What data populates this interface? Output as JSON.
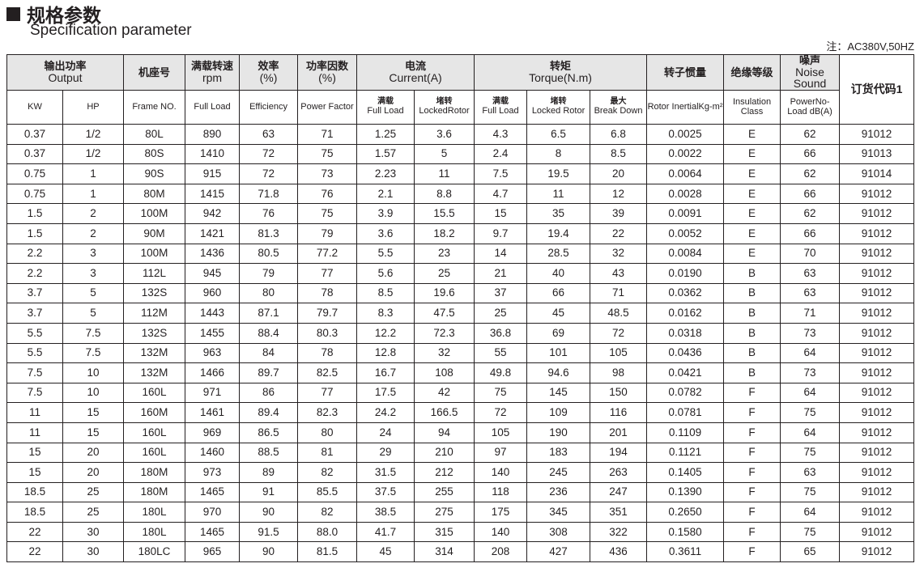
{
  "title": "规格参数",
  "subtitle": "Specification parameter",
  "note": "注：AC380V,50HZ",
  "header1": [
    {
      "cn": "输出功率",
      "en": "Output",
      "span": 2
    },
    {
      "cn": "机座号",
      "en": "",
      "span": 1
    },
    {
      "cn": "满载转速",
      "en": "rpm",
      "span": 1
    },
    {
      "cn": "效率",
      "en": "(%)",
      "span": 1
    },
    {
      "cn": "功率因数",
      "en": "(%)",
      "span": 1
    },
    {
      "cn": "电流",
      "en": "Current(A)",
      "span": 2
    },
    {
      "cn": "转矩",
      "en": "Torque(N.m)",
      "span": 3
    },
    {
      "cn": "转子惯量",
      "en": "",
      "span": 1
    },
    {
      "cn": "绝缘等级",
      "en": "",
      "span": 1
    },
    {
      "cn": "噪声",
      "en": "Noise Sound",
      "span": 1
    }
  ],
  "order_code_header": "订货代码1",
  "header2": [
    {
      "cn": "",
      "en": "KW"
    },
    {
      "cn": "",
      "en": "HP"
    },
    {
      "cn": "",
      "en": "Frame NO."
    },
    {
      "cn": "",
      "en": "Full Load"
    },
    {
      "cn": "",
      "en": "Efficiency"
    },
    {
      "cn": "",
      "en": "Power Factor"
    },
    {
      "cn": "满载",
      "en": "Full Load"
    },
    {
      "cn": "堵转",
      "en": "LockedRotor"
    },
    {
      "cn": "满载",
      "en": "Full Load"
    },
    {
      "cn": "堵转",
      "en": "Locked Rotor"
    },
    {
      "cn": "最大",
      "en": "Break Down"
    },
    {
      "cn": "",
      "en": "Rotor InertialKg-m²"
    },
    {
      "cn": "",
      "en": "Insulation Class"
    },
    {
      "cn": "",
      "en": "PowerNo-Load dB(A)"
    }
  ],
  "rows": [
    [
      "0.37",
      "1/2",
      "80L",
      "890",
      "63",
      "71",
      "1.25",
      "3.6",
      "4.3",
      "6.5",
      "6.8",
      "0.0025",
      "E",
      "62",
      "91012"
    ],
    [
      "0.37",
      "1/2",
      "80S",
      "1410",
      "72",
      "75",
      "1.57",
      "5",
      "2.4",
      "8",
      "8.5",
      "0.0022",
      "E",
      "66",
      "91013"
    ],
    [
      "0.75",
      "1",
      "90S",
      "915",
      "72",
      "73",
      "2.23",
      "11",
      "7.5",
      "19.5",
      "20",
      "0.0064",
      "E",
      "62",
      "91014"
    ],
    [
      "0.75",
      "1",
      "80M",
      "1415",
      "71.8",
      "76",
      "2.1",
      "8.8",
      "4.7",
      "11",
      "12",
      "0.0028",
      "E",
      "66",
      "91012"
    ],
    [
      "1.5",
      "2",
      "100M",
      "942",
      "76",
      "75",
      "3.9",
      "15.5",
      "15",
      "35",
      "39",
      "0.0091",
      "E",
      "62",
      "91012"
    ],
    [
      "1.5",
      "2",
      "90M",
      "1421",
      "81.3",
      "79",
      "3.6",
      "18.2",
      "9.7",
      "19.4",
      "22",
      "0.0052",
      "E",
      "66",
      "91012"
    ],
    [
      "2.2",
      "3",
      "100M",
      "1436",
      "80.5",
      "77.2",
      "5.5",
      "23",
      "14",
      "28.5",
      "32",
      "0.0084",
      "E",
      "70",
      "91012"
    ],
    [
      "2.2",
      "3",
      "112L",
      "945",
      "79",
      "77",
      "5.6",
      "25",
      "21",
      "40",
      "43",
      "0.0190",
      "B",
      "63",
      "91012"
    ],
    [
      "3.7",
      "5",
      "132S",
      "960",
      "80",
      "78",
      "8.5",
      "19.6",
      "37",
      "66",
      "71",
      "0.0362",
      "B",
      "63",
      "91012"
    ],
    [
      "3.7",
      "5",
      "112M",
      "1443",
      "87.1",
      "79.7",
      "8.3",
      "47.5",
      "25",
      "45",
      "48.5",
      "0.0162",
      "B",
      "71",
      "91012"
    ],
    [
      "5.5",
      "7.5",
      "132S",
      "1455",
      "88.4",
      "80.3",
      "12.2",
      "72.3",
      "36.8",
      "69",
      "72",
      "0.0318",
      "B",
      "73",
      "91012"
    ],
    [
      "5.5",
      "7.5",
      "132M",
      "963",
      "84",
      "78",
      "12.8",
      "32",
      "55",
      "101",
      "105",
      "0.0436",
      "B",
      "64",
      "91012"
    ],
    [
      "7.5",
      "10",
      "132M",
      "1466",
      "89.7",
      "82.5",
      "16.7",
      "108",
      "49.8",
      "94.6",
      "98",
      "0.0421",
      "B",
      "73",
      "91012"
    ],
    [
      "7.5",
      "10",
      "160L",
      "971",
      "86",
      "77",
      "17.5",
      "42",
      "75",
      "145",
      "150",
      "0.0782",
      "F",
      "64",
      "91012"
    ],
    [
      "11",
      "15",
      "160M",
      "1461",
      "89.4",
      "82.3",
      "24.2",
      "166.5",
      "72",
      "109",
      "116",
      "0.0781",
      "F",
      "75",
      "91012"
    ],
    [
      "11",
      "15",
      "160L",
      "969",
      "86.5",
      "80",
      "24",
      "94",
      "105",
      "190",
      "201",
      "0.1109",
      "F",
      "64",
      "91012"
    ],
    [
      "15",
      "20",
      "160L",
      "1460",
      "88.5",
      "81",
      "29",
      "210",
      "97",
      "183",
      "194",
      "0.1121",
      "F",
      "75",
      "91012"
    ],
    [
      "15",
      "20",
      "180M",
      "973",
      "89",
      "82",
      "31.5",
      "212",
      "140",
      "245",
      "263",
      "0.1405",
      "F",
      "63",
      "91012"
    ],
    [
      "18.5",
      "25",
      "180M",
      "1465",
      "91",
      "85.5",
      "37.5",
      "255",
      "118",
      "236",
      "247",
      "0.1390",
      "F",
      "75",
      "91012"
    ],
    [
      "18.5",
      "25",
      "180L",
      "970",
      "90",
      "82",
      "38.5",
      "275",
      "175",
      "345",
      "351",
      "0.2650",
      "F",
      "64",
      "91012"
    ],
    [
      "22",
      "30",
      "180L",
      "1465",
      "91.5",
      "88.0",
      "41.7",
      "315",
      "140",
      "308",
      "322",
      "0.1580",
      "F",
      "75",
      "91012"
    ],
    [
      "22",
      "30",
      "180LC",
      "965",
      "90",
      "81.5",
      "45",
      "314",
      "208",
      "427",
      "436",
      "0.3611",
      "F",
      "65",
      "91012"
    ]
  ]
}
